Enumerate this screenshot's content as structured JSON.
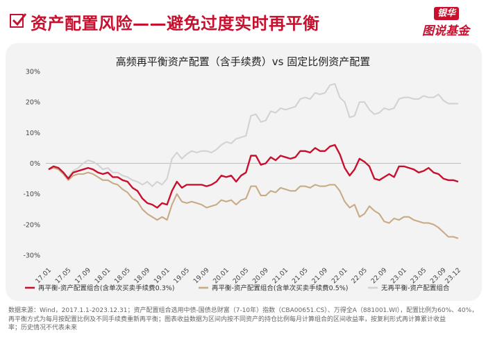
{
  "header": {
    "title": "资产配置风险——避免过度实时再平衡",
    "logo_bank": "银华",
    "logo_sub": "图说基金"
  },
  "note": {
    "line1": "数据来源：Wind，2017.1.1-2023.12.31；资产配置组合选用中债-国债总财富（7-10年）指数（CBA00651.CS）、万得全A（881001.WI），配置比例为60%、40%，",
    "line2": "再平衡方式为每月按配置比例及不同手续费重新再平衡；图表收益数据为区间内按不同资产的持仓比例每月计算组合的区间收益率，按复利形式再计算累计收益",
    "line3": "率；历史情况不代表未来"
  },
  "colors": {
    "series1": "#c8102e",
    "series2": "#c8aa84",
    "series3": "#d2d2d2"
  },
  "chart_data": {
    "type": "line",
    "title": "高频再平衡资产配置（含手续费）vs 固定比例资产配置",
    "xlabel": "",
    "ylabel": "",
    "ylim": [
      -30,
      30
    ],
    "yticks": [
      -30,
      -20,
      -10,
      0,
      10,
      20,
      30
    ],
    "ytick_labels": [
      "-30%",
      "-20%",
      "-10%",
      "0%",
      "10%",
      "20%",
      "30%"
    ],
    "x_tick_labels": [
      "17.01",
      "17.05",
      "17.09",
      "18.01",
      "18.05",
      "18.09",
      "19.01",
      "19.05",
      "19.09",
      "20.01",
      "20.05",
      "20.09",
      "21.01",
      "21.05",
      "21.09",
      "22.01",
      "22.05",
      "22.09",
      "23.01",
      "23.05",
      "23.09",
      "23.12"
    ],
    "x_tick_months": [
      0,
      4,
      8,
      12,
      16,
      20,
      24,
      28,
      32,
      36,
      40,
      44,
      48,
      52,
      56,
      60,
      64,
      68,
      72,
      76,
      80,
      83
    ],
    "grid": false,
    "legend_position": "bottom",
    "series": [
      {
        "name": "再平衡-资产配置组合(含单次买卖手续费0.3%)",
        "values": [
          -2,
          -1,
          -1.5,
          -3,
          -5,
          -3,
          -2.5,
          -2,
          -1.5,
          -2,
          -3,
          -3.5,
          -3,
          -4.5,
          -4.5,
          -5.5,
          -6,
          -8,
          -9,
          -11.5,
          -13,
          -13.5,
          -14.5,
          -13,
          -13.5,
          -9,
          -6,
          -8,
          -7,
          -7,
          -7,
          -7,
          -7.5,
          -7,
          -6,
          -4,
          -4.5,
          -4,
          -6,
          -4,
          -3,
          2.5,
          2.5,
          -0.5,
          0,
          2,
          1,
          2.5,
          2,
          1.5,
          2,
          4,
          4,
          3.5,
          5,
          4,
          4,
          5.5,
          6,
          3,
          -1.5,
          -4,
          -2,
          1.5,
          0.5,
          -1,
          -5,
          -5.5,
          -4.5,
          -3.5,
          -4.5,
          -1,
          -1,
          -1.5,
          -2,
          -3,
          -2.5,
          -1.5,
          -3,
          -3.5,
          -5,
          -5.5,
          -5.5,
          -6
        ]
      },
      {
        "name": "再平衡-资产配置组合(含单次买卖手续费0.5%)",
        "values": [
          -2,
          -1.5,
          -2,
          -3.5,
          -5.5,
          -4,
          -3.5,
          -3.5,
          -3,
          -3.5,
          -4.5,
          -5.5,
          -5.5,
          -6.5,
          -7,
          -8.5,
          -9.5,
          -11.5,
          -12.5,
          -15,
          -16.5,
          -17.5,
          -18.5,
          -17.5,
          -18.5,
          -13.5,
          -10,
          -12.5,
          -13,
          -12.5,
          -13,
          -13.5,
          -14.5,
          -14,
          -13.5,
          -12,
          -12.5,
          -12,
          -13.5,
          -12,
          -11.5,
          -7.5,
          -7.5,
          -10.5,
          -10.5,
          -9,
          -9.5,
          -8,
          -8.5,
          -9,
          -9,
          -7.5,
          -7.5,
          -8,
          -7,
          -7.5,
          -7.5,
          -7,
          -7,
          -9,
          -12.5,
          -14.5,
          -13.5,
          -17.5,
          -16.5,
          -14,
          -15.5,
          -16.5,
          -19,
          -19.5,
          -18,
          -18.5,
          -17.5,
          -17.5,
          -18.5,
          -19,
          -19.5,
          -19.5,
          -20,
          -21,
          -22.5,
          -24,
          -24,
          -24.5
        ]
      },
      {
        "name": "无再平衡-资产配置组合",
        "values": [
          -2,
          -1,
          -1.5,
          -3.5,
          -4.5,
          -2.5,
          -1.5,
          0,
          1,
          0.5,
          -0.5,
          -2,
          -1.5,
          -3,
          -3,
          -4,
          -4.5,
          -5.5,
          -6,
          -7,
          -6,
          -7.5,
          -6,
          -7,
          -5,
          1.5,
          3.5,
          1.5,
          3,
          4,
          3.5,
          4,
          4,
          3.5,
          4.5,
          6,
          7,
          6.5,
          8,
          8.5,
          9,
          15.5,
          16,
          13.5,
          14,
          17,
          16.5,
          18,
          17.5,
          18,
          18.5,
          21,
          21.5,
          21,
          23,
          22.5,
          23,
          25.5,
          26,
          21.5,
          20,
          15,
          15.5,
          20,
          20,
          17.5,
          16,
          16.5,
          18,
          17.5,
          18,
          21,
          21.5,
          21.5,
          21,
          21,
          22,
          21.5,
          21.5,
          22.5,
          20.5,
          19.5,
          19.5,
          19.5
        ]
      }
    ]
  }
}
